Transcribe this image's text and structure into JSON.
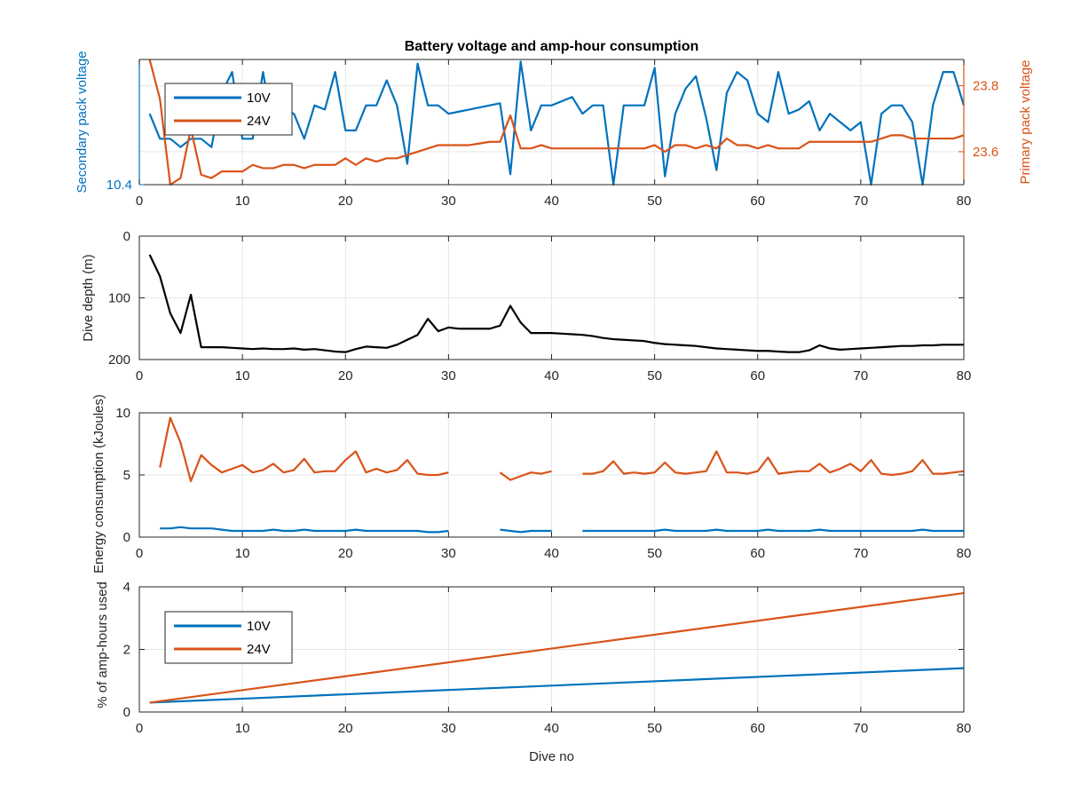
{
  "colors": {
    "v10": "#0072BD",
    "v24": "#D95319",
    "depth": "#000000",
    "axis": "#262626",
    "grid": "#e6e6e6"
  },
  "chart_data": [
    {
      "id": "voltage",
      "type": "line",
      "title": "Battery voltage and amp-hour consumption",
      "xlabel": "",
      "ylabel_left": "Secondary pack voltage",
      "ylabel_right": "Primary pack voltage",
      "xlim": [
        0,
        80
      ],
      "ylim_left": [
        10.4,
        11.0
      ],
      "ylim_right": [
        23.5,
        23.88
      ],
      "xticks": [
        0,
        10,
        20,
        30,
        40,
        50,
        60,
        70,
        80
      ],
      "yticks_left": [
        10.4
      ],
      "yticks_right": [
        23.6,
        23.8
      ],
      "legend": {
        "placement": "top-left",
        "entries": [
          "10V",
          "24V"
        ]
      },
      "series": [
        {
          "name": "10V",
          "axis": "left",
          "x": [
            1,
            2,
            3,
            4,
            5,
            6,
            7,
            8,
            9,
            10,
            11,
            12,
            13,
            14,
            15,
            16,
            17,
            18,
            19,
            20,
            21,
            22,
            23,
            24,
            25,
            26,
            27,
            28,
            29,
            30,
            31,
            32,
            33,
            34,
            35,
            36,
            37,
            38,
            39,
            40,
            41,
            42,
            43,
            44,
            45,
            46,
            47,
            48,
            49,
            50,
            51,
            52,
            53,
            54,
            55,
            56,
            57,
            58,
            59,
            60,
            61,
            62,
            63,
            64,
            65,
            66,
            67,
            68,
            69,
            70,
            71,
            72,
            73,
            74,
            75,
            76,
            77,
            78,
            79,
            80
          ],
          "values": [
            10.74,
            10.62,
            10.62,
            10.58,
            10.62,
            10.62,
            10.58,
            10.84,
            10.94,
            10.62,
            10.62,
            10.94,
            10.66,
            10.76,
            10.74,
            10.62,
            10.78,
            10.76,
            10.94,
            10.66,
            10.66,
            10.78,
            10.78,
            10.9,
            10.78,
            10.5,
            10.98,
            10.78,
            10.78,
            10.74,
            10.75,
            10.76,
            10.77,
            10.78,
            10.79,
            10.45,
            10.99,
            10.66,
            10.78,
            10.78,
            10.8,
            10.82,
            10.74,
            10.78,
            10.78,
            10.4,
            10.78,
            10.78,
            10.78,
            10.96,
            10.44,
            10.74,
            10.86,
            10.92,
            10.72,
            10.47,
            10.84,
            10.94,
            10.9,
            10.74,
            10.7,
            10.94,
            10.74,
            10.76,
            10.8,
            10.66,
            10.74,
            10.7,
            10.66,
            10.7,
            10.4,
            10.74,
            10.78,
            10.78,
            10.7,
            10.4,
            10.78,
            10.94,
            10.94,
            10.78
          ]
        },
        {
          "name": "24V",
          "axis": "right",
          "x": [
            1,
            2,
            3,
            4,
            5,
            6,
            7,
            8,
            9,
            10,
            11,
            12,
            13,
            14,
            15,
            16,
            17,
            18,
            19,
            20,
            21,
            22,
            23,
            24,
            25,
            26,
            27,
            28,
            29,
            30,
            31,
            32,
            33,
            34,
            35,
            36,
            37,
            38,
            39,
            40,
            41,
            42,
            43,
            44,
            45,
            46,
            47,
            48,
            49,
            50,
            51,
            52,
            53,
            54,
            55,
            56,
            57,
            58,
            59,
            60,
            61,
            62,
            63,
            64,
            65,
            66,
            67,
            68,
            69,
            70,
            71,
            72,
            73,
            74,
            75,
            76,
            77,
            78,
            79,
            80
          ],
          "values": [
            23.88,
            23.76,
            23.5,
            23.52,
            23.67,
            23.53,
            23.52,
            23.54,
            23.54,
            23.54,
            23.56,
            23.55,
            23.55,
            23.56,
            23.56,
            23.55,
            23.56,
            23.56,
            23.56,
            23.58,
            23.56,
            23.58,
            23.57,
            23.58,
            23.58,
            23.59,
            23.6,
            23.61,
            23.62,
            23.62,
            23.62,
            23.62,
            23.625,
            23.63,
            23.63,
            23.71,
            23.61,
            23.61,
            23.62,
            23.61,
            23.61,
            23.61,
            23.61,
            23.61,
            23.61,
            23.61,
            23.61,
            23.61,
            23.61,
            23.62,
            23.6,
            23.62,
            23.62,
            23.61,
            23.62,
            23.61,
            23.64,
            23.62,
            23.62,
            23.61,
            23.62,
            23.61,
            23.61,
            23.61,
            23.63,
            23.63,
            23.63,
            23.63,
            23.63,
            23.63,
            23.63,
            23.64,
            23.65,
            23.65,
            23.64,
            23.64,
            23.64,
            23.64,
            23.64,
            23.65
          ]
        }
      ]
    },
    {
      "id": "depth",
      "type": "line",
      "title": "",
      "xlabel": "",
      "ylabel": "Dive depth (m)",
      "xlim": [
        0,
        80
      ],
      "ylim": [
        0,
        200
      ],
      "y_reversed": true,
      "xticks": [
        0,
        10,
        20,
        30,
        40,
        50,
        60,
        70,
        80
      ],
      "yticks": [
        0,
        100,
        200
      ],
      "series": [
        {
          "x": [
            1,
            2,
            3,
            4,
            5,
            6,
            7,
            8,
            9,
            10,
            11,
            12,
            13,
            14,
            15,
            16,
            17,
            18,
            19,
            20,
            21,
            22,
            23,
            24,
            25,
            26,
            27,
            28,
            29,
            30,
            31,
            32,
            33,
            34,
            35,
            36,
            37,
            38,
            39,
            40,
            41,
            42,
            43,
            44,
            45,
            46,
            47,
            48,
            49,
            50,
            51,
            52,
            53,
            54,
            55,
            56,
            57,
            58,
            59,
            60,
            61,
            62,
            63,
            64,
            65,
            66,
            67,
            68,
            69,
            70,
            71,
            72,
            73,
            74,
            75,
            76,
            77,
            78,
            79,
            80
          ],
          "values": [
            30,
            65,
            125,
            157,
            95,
            180,
            180,
            180,
            181,
            182,
            183,
            182,
            183,
            183,
            182,
            184,
            183,
            185,
            187,
            188,
            183,
            179,
            180,
            181,
            176,
            168,
            160,
            134,
            154,
            148,
            150,
            150,
            150,
            150,
            145,
            113,
            140,
            157,
            157,
            157,
            158,
            159,
            160,
            162,
            165,
            167,
            168,
            169,
            170,
            173,
            175,
            176,
            177,
            178,
            180,
            182,
            183,
            184,
            185,
            186,
            186,
            187,
            188,
            188,
            185,
            177,
            182,
            184,
            183,
            182,
            181,
            180,
            179,
            178,
            178,
            177,
            177,
            176,
            176,
            176
          ]
        }
      ]
    },
    {
      "id": "energy",
      "type": "line",
      "title": "",
      "xlabel": "",
      "ylabel": "Energy consumption (kJoules)",
      "xlim": [
        0,
        80
      ],
      "ylim": [
        0,
        10
      ],
      "xticks": [
        0,
        10,
        20,
        30,
        40,
        50,
        60,
        70,
        80
      ],
      "yticks": [
        0,
        5,
        10
      ],
      "series": [
        {
          "name": "24V",
          "x": [
            2,
            3,
            4,
            5,
            6,
            7,
            8,
            9,
            10,
            11,
            12,
            13,
            14,
            15,
            16,
            17,
            18,
            19,
            20,
            21,
            22,
            23,
            24,
            25,
            26,
            27,
            28,
            29,
            30,
            null,
            35,
            36,
            37,
            38,
            39,
            40,
            null,
            43,
            44,
            45,
            46,
            47,
            48,
            49,
            50,
            51,
            52,
            53,
            54,
            55,
            56,
            57,
            58,
            59,
            60,
            61,
            62,
            63,
            64,
            65,
            66,
            67,
            68,
            69,
            70,
            71,
            72,
            73,
            74,
            75,
            76,
            77,
            78,
            79,
            80
          ],
          "values": [
            5.6,
            9.6,
            7.6,
            4.5,
            6.6,
            5.8,
            5.2,
            5.5,
            5.8,
            5.2,
            5.4,
            5.9,
            5.2,
            5.4,
            6.3,
            5.2,
            5.3,
            5.3,
            6.2,
            6.9,
            5.2,
            5.5,
            5.2,
            5.4,
            6.2,
            5.1,
            5,
            5,
            5.2,
            null,
            5.2,
            4.6,
            4.9,
            5.2,
            5.1,
            5.3,
            null,
            5.1,
            5.1,
            5.3,
            6.1,
            5.1,
            5.2,
            5.1,
            5.2,
            6,
            5.2,
            5.1,
            5.2,
            5.3,
            6.9,
            5.2,
            5.2,
            5.1,
            5.3,
            6.4,
            5.1,
            5.2,
            5.3,
            5.3,
            5.9,
            5.2,
            5.5,
            5.9,
            5.3,
            6.2,
            5.1,
            5,
            5.1,
            5.3,
            6.2,
            5.1,
            5.1,
            5.2,
            5.3
          ]
        },
        {
          "name": "10V",
          "x": [
            2,
            3,
            4,
            5,
            6,
            7,
            8,
            9,
            10,
            11,
            12,
            13,
            14,
            15,
            16,
            17,
            18,
            19,
            20,
            21,
            22,
            23,
            24,
            25,
            26,
            27,
            28,
            29,
            30,
            null,
            35,
            36,
            37,
            38,
            39,
            40,
            null,
            43,
            44,
            45,
            46,
            47,
            48,
            49,
            50,
            51,
            52,
            53,
            54,
            55,
            56,
            57,
            58,
            59,
            60,
            61,
            62,
            63,
            64,
            65,
            66,
            67,
            68,
            69,
            70,
            71,
            72,
            73,
            74,
            75,
            76,
            77,
            78,
            79,
            80
          ],
          "values": [
            0.7,
            0.7,
            0.8,
            0.7,
            0.7,
            0.7,
            0.6,
            0.5,
            0.5,
            0.5,
            0.5,
            0.6,
            0.5,
            0.5,
            0.6,
            0.5,
            0.5,
            0.5,
            0.5,
            0.6,
            0.5,
            0.5,
            0.5,
            0.5,
            0.5,
            0.5,
            0.4,
            0.4,
            0.5,
            null,
            0.6,
            0.5,
            0.4,
            0.5,
            0.5,
            0.5,
            null,
            0.5,
            0.5,
            0.5,
            0.5,
            0.5,
            0.5,
            0.5,
            0.5,
            0.6,
            0.5,
            0.5,
            0.5,
            0.5,
            0.6,
            0.5,
            0.5,
            0.5,
            0.5,
            0.6,
            0.5,
            0.5,
            0.5,
            0.5,
            0.6,
            0.5,
            0.5,
            0.5,
            0.5,
            0.5,
            0.5,
            0.5,
            0.5,
            0.5,
            0.6,
            0.5,
            0.5,
            0.5,
            0.5
          ]
        }
      ]
    },
    {
      "id": "amphours",
      "type": "line",
      "title": "",
      "xlabel": "Dive no",
      "ylabel": "% of amp-hours used",
      "xlim": [
        0,
        80
      ],
      "ylim": [
        0,
        4
      ],
      "xticks": [
        0,
        10,
        20,
        30,
        40,
        50,
        60,
        70,
        80
      ],
      "yticks": [
        0,
        2,
        4
      ],
      "legend": {
        "placement": "top-left",
        "entries": [
          "10V",
          "24V"
        ]
      },
      "series": [
        {
          "name": "10V",
          "x": [
            1,
            80
          ],
          "values": [
            0.3,
            1.4
          ]
        },
        {
          "name": "24V",
          "x": [
            1,
            80
          ],
          "values": [
            0.3,
            3.8
          ]
        }
      ]
    }
  ]
}
